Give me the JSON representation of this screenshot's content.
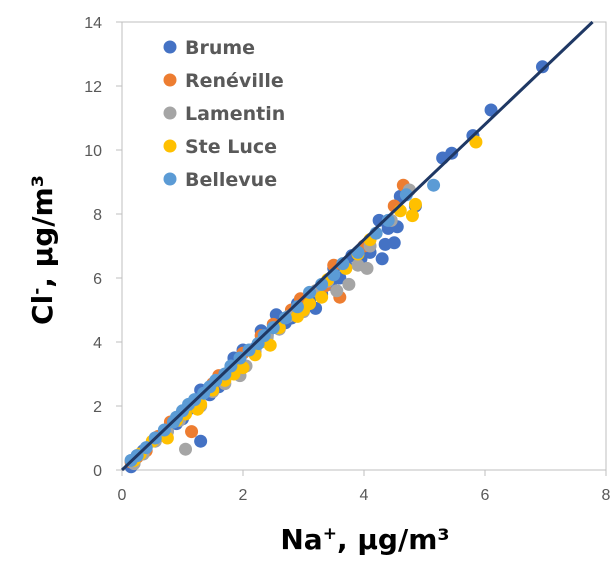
{
  "chart_data": {
    "type": "scatter",
    "title": "",
    "xlabel": {
      "base": "Na",
      "sup": "+",
      "rest": ", µg/m³"
    },
    "ylabel": {
      "base": "Cl",
      "sup": "-",
      "rest": ", µg/m³"
    },
    "xlim": [
      0,
      8
    ],
    "ylim": [
      0,
      14
    ],
    "x_ticks": [
      0,
      2,
      4,
      6,
      8
    ],
    "y_ticks": [
      0,
      2,
      4,
      6,
      8,
      10,
      12,
      14
    ],
    "grid": false,
    "legend_position": "top-left",
    "trendline": {
      "slope": 1.8,
      "intercept": 0,
      "color": "#1F3864"
    },
    "series": [
      {
        "name": "Brume",
        "color": "#4472C4",
        "points": [
          [
            6.95,
            12.6
          ],
          [
            6.1,
            11.25
          ],
          [
            5.45,
            9.9
          ],
          [
            5.8,
            10.45
          ],
          [
            5.3,
            9.75
          ],
          [
            4.85,
            8.25
          ],
          [
            4.6,
            8.55
          ],
          [
            4.55,
            7.6
          ],
          [
            4.5,
            7.1
          ],
          [
            4.35,
            7.05
          ],
          [
            4.4,
            7.55
          ],
          [
            4.25,
            7.8
          ],
          [
            4.0,
            7.0
          ],
          [
            3.95,
            6.6
          ],
          [
            4.1,
            6.8
          ],
          [
            4.3,
            6.6
          ],
          [
            3.8,
            6.7
          ],
          [
            3.7,
            6.4
          ],
          [
            3.6,
            6.0
          ],
          [
            3.5,
            6.3
          ],
          [
            3.3,
            5.5
          ],
          [
            3.2,
            5.05
          ],
          [
            3.45,
            5.8
          ],
          [
            3.1,
            5.3
          ],
          [
            2.9,
            5.2
          ],
          [
            2.8,
            4.75
          ],
          [
            2.7,
            4.6
          ],
          [
            2.55,
            4.85
          ],
          [
            2.4,
            4.2
          ],
          [
            2.3,
            4.35
          ],
          [
            2.2,
            3.8
          ],
          [
            2.0,
            3.75
          ],
          [
            1.9,
            3.3
          ],
          [
            1.85,
            3.5
          ],
          [
            1.6,
            2.6
          ],
          [
            1.45,
            2.35
          ],
          [
            1.3,
            2.5
          ],
          [
            1.2,
            2.15
          ],
          [
            1.1,
            1.9
          ],
          [
            1.0,
            1.6
          ],
          [
            0.9,
            1.45
          ],
          [
            1.3,
            0.9
          ],
          [
            0.75,
            1.2
          ],
          [
            0.55,
            1.0
          ],
          [
            0.35,
            0.6
          ],
          [
            0.25,
            0.45
          ],
          [
            0.2,
            0.25
          ],
          [
            0.15,
            0.1
          ]
        ]
      },
      {
        "name": "Renéville",
        "color": "#ED7D31",
        "points": [
          [
            4.65,
            8.9
          ],
          [
            4.5,
            8.25
          ],
          [
            4.0,
            7.0
          ],
          [
            3.5,
            6.4
          ],
          [
            3.35,
            5.75
          ],
          [
            2.95,
            5.35
          ],
          [
            2.8,
            5.0
          ],
          [
            3.6,
            5.4
          ],
          [
            2.5,
            4.55
          ],
          [
            2.3,
            4.2
          ],
          [
            2.0,
            3.65
          ],
          [
            1.8,
            3.2
          ],
          [
            1.6,
            2.95
          ],
          [
            1.5,
            2.7
          ],
          [
            1.15,
            1.2
          ],
          [
            1.0,
            1.8
          ],
          [
            0.8,
            1.5
          ],
          [
            0.6,
            1.05
          ],
          [
            0.4,
            0.6
          ],
          [
            0.25,
            0.4
          ],
          [
            0.15,
            0.25
          ]
        ]
      },
      {
        "name": "Lamentin",
        "color": "#A5A5A5",
        "points": [
          [
            4.75,
            8.75
          ],
          [
            4.45,
            7.8
          ],
          [
            4.1,
            7.0
          ],
          [
            4.05,
            6.3
          ],
          [
            3.9,
            6.4
          ],
          [
            3.75,
            5.8
          ],
          [
            3.55,
            5.6
          ],
          [
            3.4,
            5.9
          ],
          [
            3.2,
            5.6
          ],
          [
            3.0,
            4.95
          ],
          [
            2.75,
            4.8
          ],
          [
            2.6,
            4.4
          ],
          [
            2.4,
            4.15
          ],
          [
            2.2,
            3.7
          ],
          [
            2.05,
            3.25
          ],
          [
            1.95,
            2.95
          ],
          [
            1.7,
            2.7
          ],
          [
            1.5,
            2.45
          ],
          [
            1.3,
            2.0
          ],
          [
            1.05,
            0.65
          ],
          [
            0.95,
            1.55
          ],
          [
            0.75,
            1.2
          ],
          [
            0.55,
            0.9
          ],
          [
            0.35,
            0.5
          ],
          [
            0.2,
            0.2
          ]
        ]
      },
      {
        "name": "Ste Luce",
        "color": "#FFC000",
        "points": [
          [
            5.85,
            10.25
          ],
          [
            4.85,
            8.3
          ],
          [
            4.8,
            7.95
          ],
          [
            4.6,
            8.1
          ],
          [
            4.1,
            7.2
          ],
          [
            3.9,
            6.75
          ],
          [
            3.7,
            6.3
          ],
          [
            3.4,
            5.95
          ],
          [
            3.3,
            5.4
          ],
          [
            3.1,
            5.2
          ],
          [
            2.9,
            4.8
          ],
          [
            3.0,
            5.0
          ],
          [
            2.6,
            4.45
          ],
          [
            2.45,
            3.9
          ],
          [
            2.3,
            4.0
          ],
          [
            2.2,
            3.6
          ],
          [
            2.0,
            3.2
          ],
          [
            1.85,
            3.0
          ],
          [
            1.7,
            2.8
          ],
          [
            1.5,
            2.5
          ],
          [
            1.3,
            2.05
          ],
          [
            1.25,
            1.9
          ],
          [
            1.05,
            1.75
          ],
          [
            0.9,
            1.55
          ],
          [
            0.75,
            1.0
          ],
          [
            0.5,
            0.9
          ],
          [
            0.3,
            0.5
          ],
          [
            0.2,
            0.3
          ]
        ]
      },
      {
        "name": "Bellevue",
        "color": "#5B9BD5",
        "points": [
          [
            5.15,
            8.9
          ],
          [
            4.7,
            8.6
          ],
          [
            4.4,
            7.8
          ],
          [
            4.2,
            7.4
          ],
          [
            3.9,
            6.8
          ],
          [
            3.65,
            6.45
          ],
          [
            3.5,
            6.1
          ],
          [
            3.3,
            5.8
          ],
          [
            3.1,
            5.55
          ],
          [
            2.9,
            5.1
          ],
          [
            2.7,
            4.75
          ],
          [
            2.5,
            4.45
          ],
          [
            2.35,
            4.2
          ],
          [
            2.25,
            3.95
          ],
          [
            2.1,
            3.75
          ],
          [
            1.95,
            3.5
          ],
          [
            1.8,
            3.25
          ],
          [
            1.7,
            3.0
          ],
          [
            1.55,
            2.8
          ],
          [
            1.45,
            2.6
          ],
          [
            1.35,
            2.4
          ],
          [
            1.2,
            2.2
          ],
          [
            1.1,
            2.05
          ],
          [
            1.0,
            1.85
          ],
          [
            0.9,
            1.65
          ],
          [
            0.85,
            1.5
          ],
          [
            0.7,
            1.25
          ],
          [
            0.55,
            1.0
          ],
          [
            0.4,
            0.7
          ],
          [
            0.25,
            0.45
          ],
          [
            0.15,
            0.3
          ]
        ]
      }
    ]
  }
}
